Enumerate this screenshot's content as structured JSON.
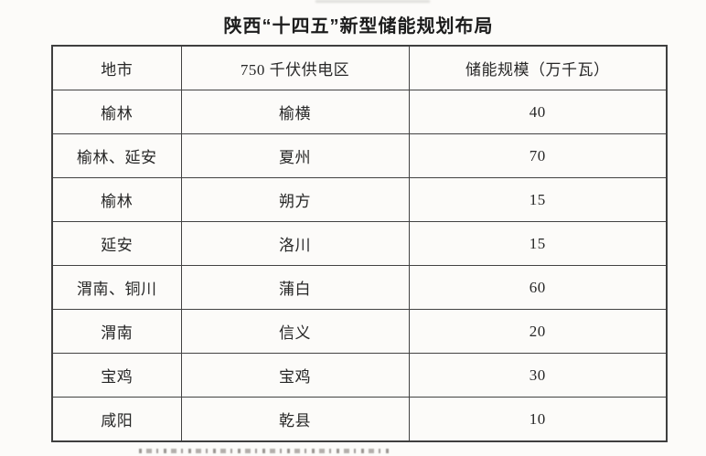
{
  "page": {
    "title": "陕西“十四五”新型储能规划布局"
  },
  "table": {
    "columns": [
      "地市",
      "750 千伏供电区",
      "储能规模（万千瓦）"
    ],
    "rows": [
      [
        "榆林",
        "榆横",
        "40"
      ],
      [
        "榆林、延安",
        "夏州",
        "70"
      ],
      [
        "榆林",
        "朔方",
        "15"
      ],
      [
        "延安",
        "洛川",
        "15"
      ],
      [
        "渭南、铜川",
        "蒲白",
        "60"
      ],
      [
        "渭南",
        "信义",
        "20"
      ],
      [
        "宝鸡",
        "宝鸡",
        "30"
      ],
      [
        "咸阳",
        "乾县",
        "10"
      ]
    ]
  },
  "chart_data": {
    "type": "table",
    "title": "陕西“十四五”新型储能规划布局",
    "columns": [
      "地市",
      "750 千伏供电区",
      "储能规模（万千瓦）"
    ],
    "categories": [
      "榆横",
      "夏州",
      "朔方",
      "洛川",
      "蒲白",
      "信义",
      "宝鸡",
      "乾县"
    ],
    "cities": [
      "榆林",
      "榆林、延安",
      "榆林",
      "延安",
      "渭南、铜川",
      "渭南",
      "宝鸡",
      "咸阳"
    ],
    "values": [
      40,
      70,
      15,
      15,
      60,
      20,
      30,
      10
    ],
    "unit": "万千瓦"
  },
  "colors": {
    "background": "#fcfbf9",
    "border": "#424242",
    "text": "#272727",
    "title_text": "#1d1d1d"
  }
}
